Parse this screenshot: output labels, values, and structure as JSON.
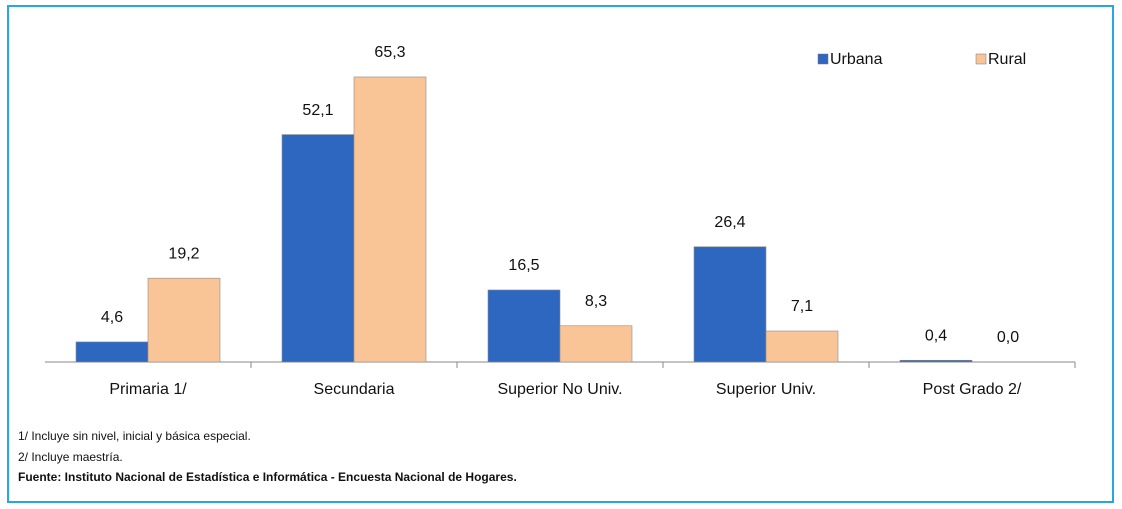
{
  "chart_data": {
    "type": "bar",
    "categories": [
      "Primaria 1/",
      "Secundaria",
      "Superior No Univ.",
      "Superior Univ.",
      "Post Grado 2/"
    ],
    "series": [
      {
        "name": "Urbana",
        "color": "#2e67bf",
        "values": [
          4.6,
          52.1,
          16.5,
          26.4,
          0.4
        ],
        "value_labels": [
          "4,6",
          "52,1",
          "16,5",
          "26,4",
          "0,4"
        ]
      },
      {
        "name": "Rural",
        "color": "#fac596",
        "values": [
          19.2,
          65.3,
          8.3,
          7.1,
          0.0
        ],
        "value_labels": [
          "19,2",
          "65,3",
          "8,3",
          "7,1",
          "0,0"
        ]
      }
    ],
    "legend": "top-right",
    "notes": [
      "1/ Incluye sin nivel, inicial y básica especial.",
      "2/ Incluye maestría."
    ],
    "source": "Fuente: Instituto Nacional de Estadística e Informática - Encuesta Nacional de Hogares."
  }
}
